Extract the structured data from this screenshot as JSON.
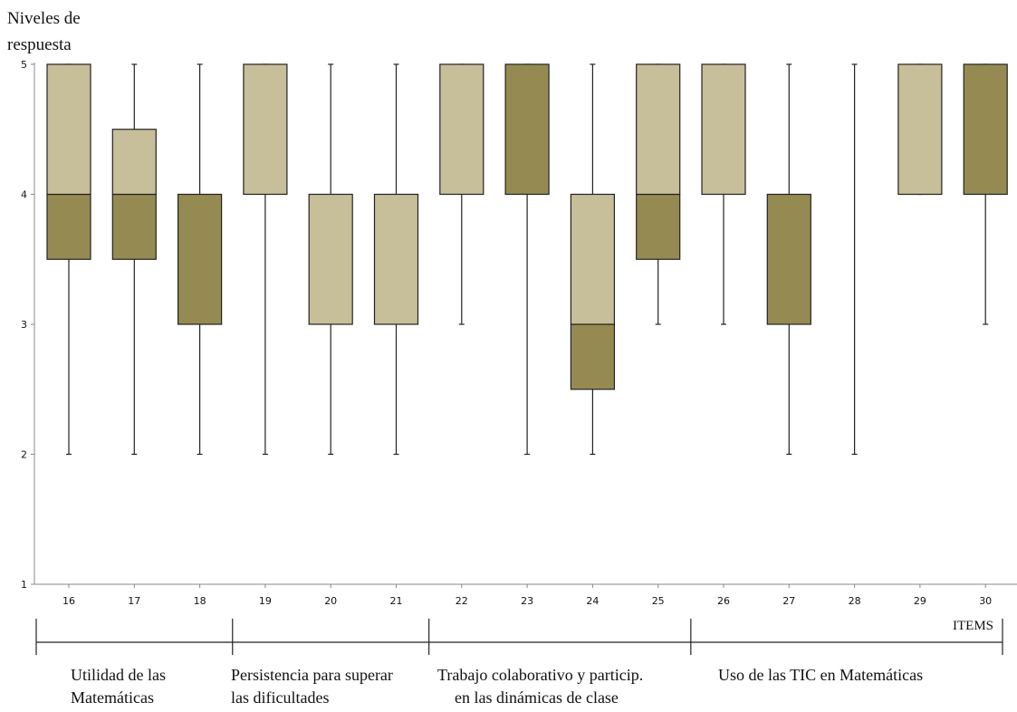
{
  "chart_data": {
    "type": "box",
    "ylabel_line1": "Niveles de",
    "ylabel_line2": "respuesta",
    "xlabel": "ITEMS",
    "ylim": [
      1,
      5
    ],
    "yticks": [
      1,
      2,
      3,
      4,
      5
    ],
    "colors": {
      "light": "#c7be9a",
      "dark": "#958b52",
      "stroke": "#222222",
      "axis": "#888888"
    },
    "boxes": [
      {
        "item": "16",
        "whisker_low": 2,
        "q1": 3.5,
        "median": 4,
        "q3": 5,
        "whisker_high": 5
      },
      {
        "item": "17",
        "whisker_low": 2,
        "q1": 3.5,
        "median": 4,
        "q3": 4.5,
        "whisker_high": 5
      },
      {
        "item": "18",
        "whisker_low": 2,
        "q1": 3,
        "median": 4,
        "q3": 4,
        "whisker_high": 5
      },
      {
        "item": "19",
        "whisker_low": 2,
        "q1": 4,
        "median": 4,
        "q3": 5,
        "whisker_high": 5
      },
      {
        "item": "20",
        "whisker_low": 2,
        "q1": 3,
        "median": 3,
        "q3": 4,
        "whisker_high": 5
      },
      {
        "item": "21",
        "whisker_low": 2,
        "q1": 3,
        "median": 3,
        "q3": 4,
        "whisker_high": 5
      },
      {
        "item": "22",
        "whisker_low": 3,
        "q1": 4,
        "median": 4,
        "q3": 5,
        "whisker_high": 5
      },
      {
        "item": "23",
        "whisker_low": 2,
        "q1": 4,
        "median": 5,
        "q3": 5,
        "whisker_high": 5
      },
      {
        "item": "24",
        "whisker_low": 2,
        "q1": 2.5,
        "median": 3,
        "q3": 4,
        "whisker_high": 5
      },
      {
        "item": "25",
        "whisker_low": 3,
        "q1": 3.5,
        "median": 4,
        "q3": 5,
        "whisker_high": 5
      },
      {
        "item": "26",
        "whisker_low": 3,
        "q1": 4,
        "median": 4,
        "q3": 5,
        "whisker_high": 5
      },
      {
        "item": "27",
        "whisker_low": 2,
        "q1": 3,
        "median": 4,
        "q3": 4,
        "whisker_high": 5
      },
      {
        "item": "28",
        "whisker_low": 2,
        "q1": 4,
        "median": 4,
        "q3": 4,
        "whisker_high": 5
      },
      {
        "item": "29",
        "whisker_low": 4,
        "q1": 4,
        "median": 4,
        "q3": 5,
        "whisker_high": 5
      },
      {
        "item": "30",
        "whisker_low": 3,
        "q1": 4,
        "median": 5,
        "q3": 5,
        "whisker_high": 5
      }
    ],
    "groups": [
      {
        "line1": "Utilidad de las",
        "line2": "Matemáticas",
        "first_item": "16",
        "last_item": "18"
      },
      {
        "line1": "Persistencia para superar",
        "line2": "las dificultades",
        "first_item": "19",
        "last_item": "21"
      },
      {
        "line1": "Trabajo colaborativo y particip.",
        "line2": "en las dinámicas de clase",
        "first_item": "22",
        "last_item": "25"
      },
      {
        "line1": "Uso de las TIC en Matemáticas",
        "line2": "",
        "first_item": "26",
        "last_item": "30"
      }
    ]
  }
}
